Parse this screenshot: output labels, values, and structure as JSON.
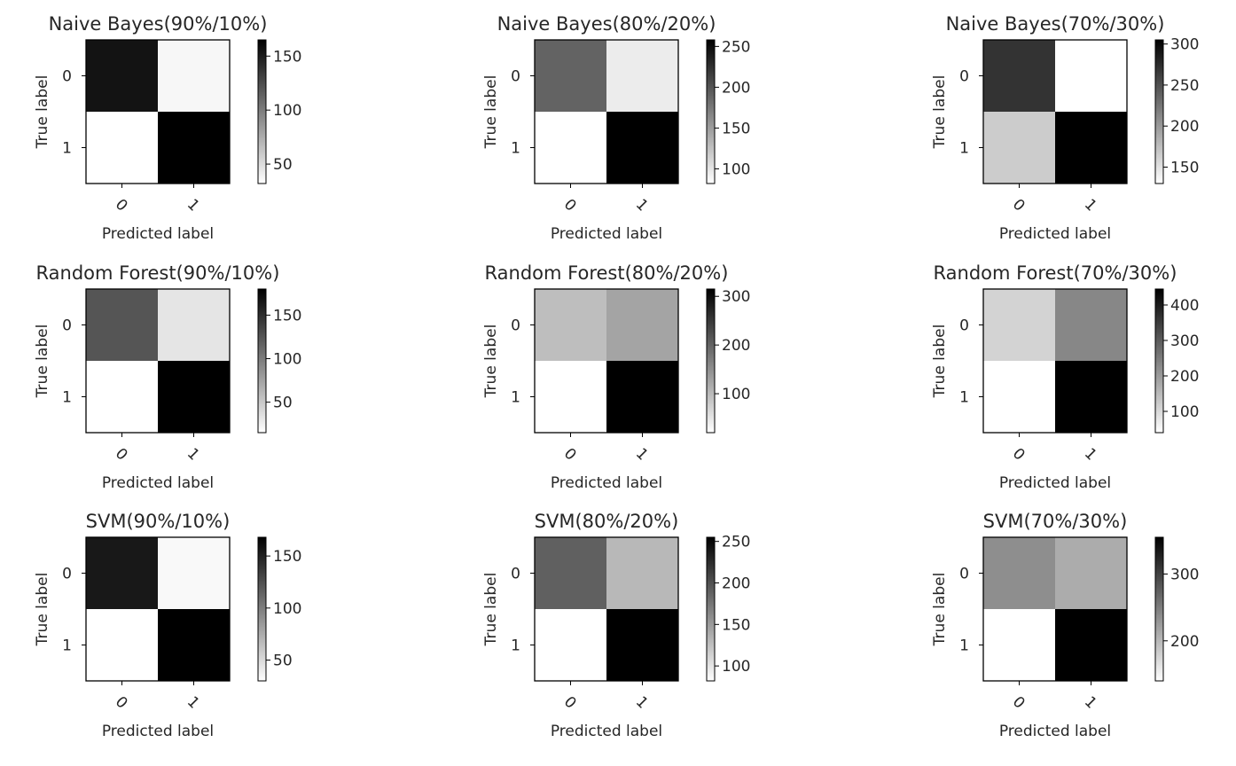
{
  "chart_data": [
    {
      "type": "heatmap",
      "title": "Naive Bayes(90%/10%)",
      "xlabel": "Predicted label",
      "ylabel": "True label",
      "x_categories": [
        "0",
        "1"
      ],
      "y_categories": [
        "0",
        "1"
      ],
      "values": [
        [
          155,
          36
        ],
        [
          32,
          165
        ]
      ],
      "colorbar": {
        "range": [
          32,
          165
        ],
        "ticks": [
          50,
          100,
          150
        ]
      }
    },
    {
      "type": "heatmap",
      "title": "Naive Bayes(80%/20%)",
      "xlabel": "Predicted label",
      "ylabel": "True label",
      "x_categories": [
        "0",
        "1"
      ],
      "y_categories": [
        "0",
        "1"
      ],
      "values": [
        [
          190,
          95
        ],
        [
          82,
          258
        ]
      ],
      "colorbar": {
        "range": [
          82,
          258
        ],
        "ticks": [
          100,
          150,
          200,
          250
        ]
      }
    },
    {
      "type": "heatmap",
      "title": "Naive Bayes(70%/30%)",
      "xlabel": "Predicted label",
      "ylabel": "True label",
      "x_categories": [
        "0",
        "1"
      ],
      "y_categories": [
        "0",
        "1"
      ],
      "values": [
        [
          270,
          130
        ],
        [
          165,
          305
        ]
      ],
      "colorbar": {
        "range": [
          130,
          305
        ],
        "ticks": [
          150,
          200,
          250,
          300
        ]
      }
    },
    {
      "type": "heatmap",
      "title": "Random Forest(90%/10%)",
      "xlabel": "Predicted label",
      "ylabel": "True label",
      "x_categories": [
        "0",
        "1"
      ],
      "y_categories": [
        "0",
        "1"
      ],
      "values": [
        [
          125,
          32
        ],
        [
          15,
          180
        ]
      ],
      "colorbar": {
        "range": [
          15,
          180
        ],
        "ticks": [
          50,
          100,
          150
        ]
      }
    },
    {
      "type": "heatmap",
      "title": "Random Forest(80%/20%)",
      "xlabel": "Predicted label",
      "ylabel": "True label",
      "x_categories": [
        "0",
        "1"
      ],
      "y_categories": [
        "0",
        "1"
      ],
      "values": [
        [
          95,
          125
        ],
        [
          20,
          315
        ]
      ],
      "colorbar": {
        "range": [
          20,
          315
        ],
        "ticks": [
          100,
          200,
          300
        ]
      }
    },
    {
      "type": "heatmap",
      "title": "Random Forest(70%/30%)",
      "xlabel": "Predicted label",
      "ylabel": "True label",
      "x_categories": [
        "0",
        "1"
      ],
      "y_categories": [
        "0",
        "1"
      ],
      "values": [
        [
          110,
          230
        ],
        [
          40,
          445
        ]
      ],
      "colorbar": {
        "range": [
          40,
          445
        ],
        "ticks": [
          100,
          200,
          300,
          400
        ]
      }
    },
    {
      "type": "heatmap",
      "title": "SVM(90%/10%)",
      "xlabel": "Predicted label",
      "ylabel": "True label",
      "x_categories": [
        "0",
        "1"
      ],
      "y_categories": [
        "0",
        "1"
      ],
      "values": [
        [
          155,
          33
        ],
        [
          30,
          168
        ]
      ],
      "colorbar": {
        "range": [
          30,
          168
        ],
        "ticks": [
          50,
          100,
          150
        ]
      }
    },
    {
      "type": "heatmap",
      "title": "SVM(80%/20%)",
      "xlabel": "Predicted label",
      "ylabel": "True label",
      "x_categories": [
        "0",
        "1"
      ],
      "y_categories": [
        "0",
        "1"
      ],
      "values": [
        [
          190,
          130
        ],
        [
          82,
          255
        ]
      ],
      "colorbar": {
        "range": [
          82,
          255
        ],
        "ticks": [
          100,
          150,
          200,
          250
        ]
      }
    },
    {
      "type": "heatmap",
      "title": "SVM(70%/30%)",
      "xlabel": "Predicted label",
      "ylabel": "True label",
      "x_categories": [
        "0",
        "1"
      ],
      "y_categories": [
        "0",
        "1"
      ],
      "values": [
        [
          235,
          210
        ],
        [
          140,
          355
        ]
      ],
      "colorbar": {
        "range": [
          140,
          355
        ],
        "ticks": [
          200,
          300
        ]
      }
    }
  ],
  "colors": {
    "low": "#ffffff",
    "high": "#000000",
    "frame": "#000000",
    "text": "#262626"
  }
}
